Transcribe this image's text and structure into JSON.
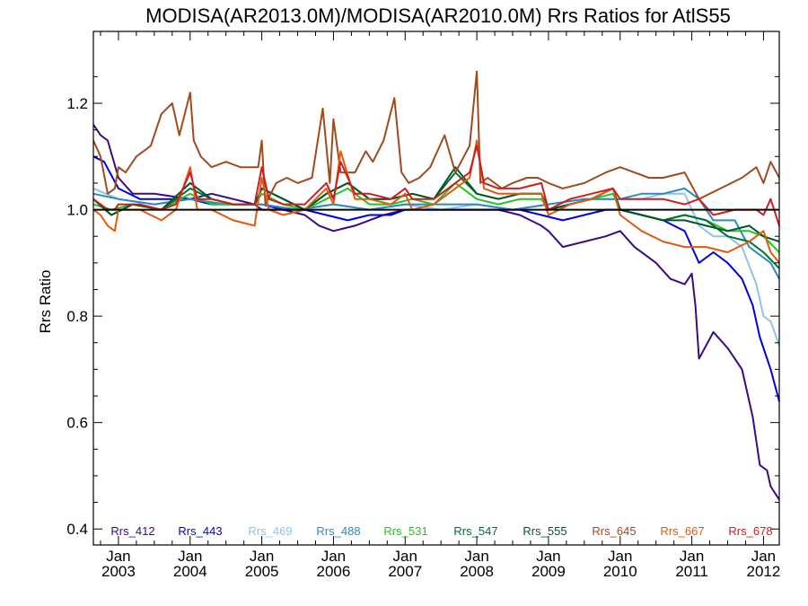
{
  "chart_data": {
    "type": "line",
    "title": "MODISA(AR2013.0M)/MODISA(AR2010.0M)  Rrs Ratios for AtlS55",
    "xlabel": "",
    "ylabel": "Rrs Ratio",
    "xlim": [
      2002.65,
      2012.22
    ],
    "ylim": [
      0.37,
      1.335
    ],
    "yticks": [
      0.4,
      0.6,
      0.8,
      1.0,
      1.2
    ],
    "ytick_labels": [
      "0.4",
      "0.6",
      "0.8",
      "1.0",
      "1.2"
    ],
    "xticks": [
      {
        "value": 2003,
        "label": [
          "Jan",
          "2003"
        ]
      },
      {
        "value": 2004,
        "label": [
          "Jan",
          "2004"
        ]
      },
      {
        "value": 2005,
        "label": [
          "Jan",
          "2005"
        ]
      },
      {
        "value": 2006,
        "label": [
          "Jan",
          "2006"
        ]
      },
      {
        "value": 2007,
        "label": [
          "Jan",
          "2007"
        ]
      },
      {
        "value": 2008,
        "label": [
          "Jan",
          "2008"
        ]
      },
      {
        "value": 2009,
        "label": [
          "Jan",
          "2009"
        ]
      },
      {
        "value": 2010,
        "label": [
          "Jan",
          "2010"
        ]
      },
      {
        "value": 2011,
        "label": [
          "Jan",
          "2011"
        ]
      },
      {
        "value": 2012,
        "label": [
          "Jan",
          "2012"
        ]
      }
    ],
    "reference_line": 1.0,
    "grid": false,
    "legend_position": "bottom-inside",
    "series": [
      {
        "name": "Rrs_412",
        "color": "#3c0a82",
        "x": [
          2002.65,
          2002.75,
          2002.85,
          2003.0,
          2003.2,
          2003.5,
          2004.0,
          2004.3,
          2004.6,
          2004.9,
          2005.0,
          2005.3,
          2005.6,
          2005.8,
          2006.0,
          2006.3,
          2006.5,
          2006.7,
          2007.0,
          2007.3,
          2007.6,
          2008.0,
          2008.3,
          2008.6,
          2008.9,
          2009.0,
          2009.2,
          2009.5,
          2009.8,
          2010.0,
          2010.2,
          2010.5,
          2010.7,
          2010.9,
          2011.0,
          2011.05,
          2011.1,
          2011.3,
          2011.5,
          2011.7,
          2011.85,
          2011.95,
          2012.05,
          2012.1,
          2012.22
        ],
        "y": [
          1.16,
          1.14,
          1.13,
          1.06,
          1.03,
          1.03,
          1.02,
          1.03,
          1.02,
          1.01,
          1.0,
          1.0,
          0.99,
          0.97,
          0.96,
          0.97,
          0.98,
          0.99,
          1.0,
          1.0,
          1.0,
          1.0,
          1.0,
          0.99,
          0.97,
          0.96,
          0.93,
          0.94,
          0.95,
          0.96,
          0.93,
          0.9,
          0.87,
          0.86,
          0.88,
          0.82,
          0.72,
          0.77,
          0.74,
          0.7,
          0.61,
          0.52,
          0.51,
          0.48,
          0.455
        ]
      },
      {
        "name": "Rrs_443",
        "color": "#0000e6",
        "x": [
          2002.65,
          2002.8,
          2003.0,
          2003.3,
          2003.6,
          2004.0,
          2004.3,
          2004.6,
          2005.0,
          2005.3,
          2005.6,
          2005.9,
          2006.2,
          2006.5,
          2006.8,
          2007.0,
          2007.3,
          2007.6,
          2008.0,
          2008.3,
          2008.6,
          2008.9,
          2009.2,
          2009.5,
          2009.8,
          2010.0,
          2010.3,
          2010.6,
          2010.9,
          2011.1,
          2011.3,
          2011.5,
          2011.7,
          2011.85,
          2011.95,
          2012.1,
          2012.22
        ],
        "y": [
          1.1,
          1.09,
          1.04,
          1.02,
          1.02,
          1.02,
          1.01,
          1.01,
          1.01,
          1.0,
          1.0,
          0.99,
          0.98,
          0.99,
          0.99,
          1.0,
          1.0,
          1.0,
          1.0,
          1.0,
          1.0,
          0.99,
          0.98,
          0.99,
          1.0,
          1.0,
          0.99,
          0.98,
          0.96,
          0.9,
          0.92,
          0.9,
          0.87,
          0.82,
          0.76,
          0.7,
          0.64
        ]
      },
      {
        "name": "Rrs_469",
        "color": "#8fc3e8",
        "x": [
          2002.65,
          2003.0,
          2003.5,
          2004.0,
          2004.5,
          2005.0,
          2005.5,
          2006.0,
          2006.5,
          2007.0,
          2007.5,
          2008.0,
          2008.5,
          2009.0,
          2009.5,
          2010.0,
          2010.3,
          2010.6,
          2010.9,
          2011.1,
          2011.3,
          2011.5,
          2011.7,
          2011.9,
          2012.0,
          2012.1,
          2012.22
        ],
        "y": [
          1.04,
          1.02,
          1.01,
          1.02,
          1.01,
          1.01,
          1.0,
          1.01,
          1.0,
          1.01,
          1.0,
          1.01,
          1.0,
          1.01,
          1.02,
          1.02,
          1.02,
          1.03,
          1.03,
          0.97,
          0.95,
          0.95,
          0.93,
          0.86,
          0.8,
          0.79,
          0.745
        ]
      },
      {
        "name": "Rrs_488",
        "color": "#2a8ac8",
        "x": [
          2002.65,
          2003.0,
          2003.5,
          2004.0,
          2004.5,
          2005.0,
          2005.5,
          2006.0,
          2006.5,
          2007.0,
          2007.5,
          2008.0,
          2008.5,
          2009.0,
          2009.5,
          2010.0,
          2010.3,
          2010.6,
          2010.9,
          2011.1,
          2011.3,
          2011.6,
          2011.8,
          2012.0,
          2012.1,
          2012.22
        ],
        "y": [
          1.03,
          1.02,
          1.01,
          1.02,
          1.01,
          1.01,
          1.0,
          1.01,
          1.0,
          1.01,
          1.01,
          1.01,
          1.0,
          1.01,
          1.02,
          1.02,
          1.03,
          1.03,
          1.04,
          1.02,
          0.98,
          0.98,
          0.93,
          0.91,
          0.9,
          0.87
        ]
      },
      {
        "name": "Rrs_531",
        "color": "#22c422",
        "x": [
          2002.65,
          2002.9,
          2003.2,
          2003.6,
          2004.0,
          2004.3,
          2004.6,
          2004.9,
          2005.0,
          2005.3,
          2005.6,
          2005.9,
          2006.2,
          2006.5,
          2006.8,
          2007.1,
          2007.4,
          2007.7,
          2008.0,
          2008.3,
          2008.6,
          2008.9,
          2009.0,
          2009.3,
          2009.6,
          2009.9,
          2010.0,
          2010.3,
          2010.6,
          2010.9,
          2011.2,
          2011.5,
          2011.8,
          2012.0,
          2012.22
        ],
        "y": [
          1.01,
          1.0,
          1.01,
          1.0,
          1.03,
          1.01,
          1.01,
          1.01,
          1.03,
          1.01,
          1.0,
          1.02,
          1.04,
          1.01,
          1.01,
          1.02,
          1.01,
          1.05,
          1.02,
          1.01,
          1.02,
          1.02,
          1.0,
          1.01,
          1.02,
          1.03,
          1.0,
          0.99,
          0.98,
          0.99,
          0.98,
          0.96,
          0.96,
          0.95,
          0.92
        ]
      },
      {
        "name": "Rrs_547",
        "color": "#007030",
        "x": [
          2002.65,
          2002.9,
          2003.2,
          2003.6,
          2004.0,
          2004.3,
          2004.6,
          2004.9,
          2005.0,
          2005.3,
          2005.6,
          2005.9,
          2006.2,
          2006.5,
          2006.8,
          2007.1,
          2007.4,
          2007.7,
          2008.0,
          2008.3,
          2008.6,
          2008.9,
          2009.0,
          2009.3,
          2009.6,
          2009.9,
          2010.0,
          2010.3,
          2010.6,
          2010.9,
          2011.2,
          2011.5,
          2011.8,
          2012.0,
          2012.22
        ],
        "y": [
          1.02,
          0.99,
          1.01,
          1.0,
          1.04,
          1.02,
          1.01,
          1.01,
          1.04,
          1.02,
          1.0,
          1.03,
          1.05,
          1.02,
          1.02,
          1.03,
          1.02,
          1.07,
          1.03,
          1.02,
          1.03,
          1.03,
          1.0,
          1.01,
          1.02,
          1.04,
          1.0,
          0.99,
          0.98,
          0.99,
          0.98,
          0.95,
          0.94,
          0.92,
          0.89
        ]
      },
      {
        "name": "Rrs_555",
        "color": "#05552a",
        "x": [
          2002.65,
          2002.9,
          2003.2,
          2003.6,
          2004.0,
          2004.3,
          2004.6,
          2004.9,
          2005.0,
          2005.3,
          2005.6,
          2005.9,
          2006.2,
          2006.5,
          2006.8,
          2007.1,
          2007.4,
          2007.7,
          2008.0,
          2008.3,
          2008.6,
          2008.9,
          2009.0,
          2009.3,
          2009.6,
          2009.9,
          2010.0,
          2010.3,
          2010.6,
          2010.9,
          2011.2,
          2011.5,
          2011.8,
          2012.0,
          2012.22
        ],
        "y": [
          1.02,
          0.99,
          1.01,
          1.0,
          1.05,
          1.02,
          1.01,
          1.01,
          1.04,
          1.02,
          1.0,
          1.03,
          1.05,
          1.02,
          1.02,
          1.03,
          1.02,
          1.08,
          1.03,
          1.02,
          1.03,
          1.03,
          1.0,
          1.01,
          1.02,
          1.04,
          1.0,
          0.99,
          0.98,
          0.98,
          0.97,
          0.96,
          0.97,
          0.95,
          0.94
        ]
      },
      {
        "name": "Rrs_645",
        "color": "#a04b1e",
        "x": [
          2002.65,
          2002.75,
          2002.85,
          2002.95,
          2003.0,
          2003.1,
          2003.25,
          2003.45,
          2003.6,
          2003.75,
          2003.85,
          2004.0,
          2004.05,
          2004.15,
          2004.3,
          2004.5,
          2004.7,
          2004.85,
          2004.95,
          2005.0,
          2005.05,
          2005.2,
          2005.35,
          2005.5,
          2005.7,
          2005.85,
          2005.95,
          2006.0,
          2006.1,
          2006.3,
          2006.45,
          2006.55,
          2006.7,
          2006.85,
          2006.95,
          2007.05,
          2007.2,
          2007.35,
          2007.55,
          2007.7,
          2007.9,
          2008.0,
          2008.05,
          2008.15,
          2008.35,
          2008.5,
          2008.7,
          2008.85,
          2009.0,
          2009.2,
          2009.5,
          2009.8,
          2010.0,
          2010.2,
          2010.4,
          2010.6,
          2010.9,
          2011.1,
          2011.4,
          2011.7,
          2011.9,
          2012.0,
          2012.1,
          2012.22
        ],
        "y": [
          1.13,
          1.1,
          1.03,
          1.04,
          1.08,
          1.07,
          1.1,
          1.12,
          1.18,
          1.2,
          1.14,
          1.22,
          1.13,
          1.1,
          1.08,
          1.09,
          1.08,
          1.08,
          1.08,
          1.13,
          1.01,
          1.05,
          1.06,
          1.05,
          1.06,
          1.19,
          1.05,
          1.17,
          1.07,
          1.07,
          1.11,
          1.09,
          1.13,
          1.21,
          1.07,
          1.05,
          1.06,
          1.08,
          1.14,
          1.07,
          1.12,
          1.26,
          1.05,
          1.06,
          1.04,
          1.05,
          1.06,
          1.06,
          1.05,
          1.04,
          1.05,
          1.07,
          1.08,
          1.07,
          1.06,
          1.06,
          1.07,
          1.02,
          1.04,
          1.06,
          1.08,
          1.05,
          1.09,
          1.06
        ]
      },
      {
        "name": "Rrs_667",
        "color": "#e05a10",
        "x": [
          2002.65,
          2002.75,
          2002.85,
          2002.95,
          2003.0,
          2003.3,
          2003.6,
          2003.8,
          2004.0,
          2004.1,
          2004.3,
          2004.6,
          2004.9,
          2005.0,
          2005.1,
          2005.3,
          2005.6,
          2005.9,
          2006.0,
          2006.1,
          2006.3,
          2006.5,
          2006.8,
          2007.0,
          2007.1,
          2007.4,
          2007.7,
          2007.9,
          2008.0,
          2008.1,
          2008.3,
          2008.6,
          2008.9,
          2009.0,
          2009.3,
          2009.6,
          2009.9,
          2010.0,
          2010.3,
          2010.6,
          2010.9,
          2011.2,
          2011.5,
          2011.8,
          2012.0,
          2012.1,
          2012.22
        ],
        "y": [
          1.0,
          0.99,
          0.97,
          0.96,
          1.0,
          1.0,
          0.98,
          1.0,
          1.08,
          1.0,
          1.0,
          0.98,
          0.97,
          1.06,
          1.0,
          0.99,
          1.0,
          1.04,
          1.01,
          1.11,
          1.02,
          1.02,
          1.01,
          1.03,
          1.0,
          1.01,
          1.04,
          1.06,
          1.13,
          1.04,
          1.03,
          1.03,
          1.03,
          0.99,
          1.01,
          1.02,
          1.04,
          0.99,
          0.96,
          0.94,
          0.93,
          0.93,
          0.92,
          0.94,
          0.96,
          0.92,
          0.9
        ]
      },
      {
        "name": "Rrs_678",
        "color": "#d01c20",
        "x": [
          2002.65,
          2002.75,
          2002.85,
          2002.95,
          2003.0,
          2003.3,
          2003.6,
          2003.8,
          2004.0,
          2004.1,
          2004.3,
          2004.6,
          2004.9,
          2005.0,
          2005.1,
          2005.3,
          2005.6,
          2005.9,
          2006.0,
          2006.1,
          2006.3,
          2006.5,
          2006.8,
          2007.0,
          2007.1,
          2007.4,
          2007.7,
          2007.9,
          2008.0,
          2008.1,
          2008.3,
          2008.6,
          2008.9,
          2009.0,
          2009.3,
          2009.6,
          2009.9,
          2010.0,
          2010.3,
          2010.6,
          2010.9,
          2011.1,
          2011.3,
          2011.6,
          2011.9,
          2012.0,
          2012.1,
          2012.22
        ],
        "y": [
          1.02,
          1.01,
          1.0,
          1.0,
          1.01,
          1.01,
          1.0,
          1.01,
          1.07,
          1.02,
          1.02,
          1.01,
          1.01,
          1.08,
          1.02,
          1.01,
          1.01,
          1.05,
          1.02,
          1.09,
          1.03,
          1.03,
          1.02,
          1.04,
          1.02,
          1.02,
          1.05,
          1.07,
          1.12,
          1.05,
          1.04,
          1.04,
          1.05,
          1.0,
          1.02,
          1.03,
          1.04,
          1.02,
          1.02,
          1.02,
          1.01,
          1.02,
          0.99,
          1.0,
          1.0,
          0.99,
          1.02,
          0.97
        ]
      }
    ]
  }
}
